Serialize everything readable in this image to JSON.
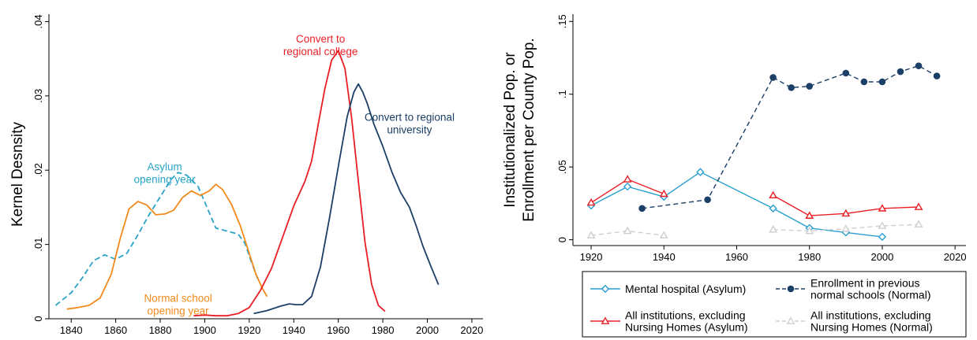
{
  "chart_data": [
    {
      "type": "line",
      "ylabel": "Kernel Desnsity",
      "xlim": [
        1830,
        2025
      ],
      "ylim": [
        0,
        0.041
      ],
      "x_ticks": [
        1840,
        1860,
        1880,
        1900,
        1920,
        1940,
        1960,
        1980,
        2000,
        2020
      ],
      "y_ticks": [
        {
          "value": 0,
          "label": "0"
        },
        {
          "value": 0.01,
          "label": ".01"
        },
        {
          "value": 0.02,
          "label": ".02"
        },
        {
          "value": 0.03,
          "label": ".03"
        },
        {
          "value": 0.04,
          "label": ".04"
        }
      ],
      "series": [
        {
          "color": "#29a3c7",
          "dash": "dashed",
          "points": [
            [
              1833,
              0.0018
            ],
            [
              1840,
              0.0035
            ],
            [
              1845,
              0.0055
            ],
            [
              1850,
              0.0078
            ],
            [
              1855,
              0.0086
            ],
            [
              1860,
              0.008
            ],
            [
              1865,
              0.0088
            ],
            [
              1870,
              0.0113
            ],
            [
              1875,
              0.014
            ],
            [
              1880,
              0.0164
            ],
            [
              1885,
              0.0188
            ],
            [
              1888,
              0.0197
            ],
            [
              1892,
              0.0193
            ],
            [
              1897,
              0.0178
            ],
            [
              1902,
              0.0143
            ],
            [
              1905,
              0.0122
            ],
            [
              1910,
              0.0118
            ],
            [
              1915,
              0.0114
            ],
            [
              1918,
              0.0102
            ],
            [
              1921,
              0.0076
            ],
            [
              1924,
              0.0052
            ]
          ]
        },
        {
          "color": "#f28a1c",
          "dash": "solid",
          "points": [
            [
              1838,
              0.0013
            ],
            [
              1843,
              0.0015
            ],
            [
              1848,
              0.0018
            ],
            [
              1853,
              0.0028
            ],
            [
              1858,
              0.006
            ],
            [
              1862,
              0.0108
            ],
            [
              1866,
              0.0148
            ],
            [
              1870,
              0.0158
            ],
            [
              1874,
              0.0153
            ],
            [
              1878,
              0.014
            ],
            [
              1882,
              0.0141
            ],
            [
              1886,
              0.0146
            ],
            [
              1890,
              0.0163
            ],
            [
              1894,
              0.0172
            ],
            [
              1898,
              0.0166
            ],
            [
              1902,
              0.0172
            ],
            [
              1905,
              0.0181
            ],
            [
              1908,
              0.0174
            ],
            [
              1912,
              0.0154
            ],
            [
              1916,
              0.0125
            ],
            [
              1920,
              0.0088
            ],
            [
              1923,
              0.006
            ],
            [
              1926,
              0.004
            ],
            [
              1928,
              0.003
            ]
          ]
        },
        {
          "color": "#e81e25",
          "dash": "solid",
          "points": [
            [
              1895,
              0.0004
            ],
            [
              1900,
              0.0005
            ],
            [
              1905,
              0.0004
            ],
            [
              1910,
              0.0004
            ],
            [
              1915,
              0.0007
            ],
            [
              1920,
              0.0015
            ],
            [
              1925,
              0.0038
            ],
            [
              1930,
              0.0068
            ],
            [
              1935,
              0.011
            ],
            [
              1940,
              0.0152
            ],
            [
              1945,
              0.0185
            ],
            [
              1948,
              0.0212
            ],
            [
              1951,
              0.0262
            ],
            [
              1954,
              0.031
            ],
            [
              1957,
              0.0348
            ],
            [
              1960,
              0.0361
            ],
            [
              1963,
              0.0337
            ],
            [
              1966,
              0.027
            ],
            [
              1969,
              0.0185
            ],
            [
              1972,
              0.0103
            ],
            [
              1975,
              0.0046
            ],
            [
              1978,
              0.0018
            ],
            [
              1981,
              0.001
            ]
          ]
        },
        {
          "color": "#1b3f66",
          "dash": "solid",
          "points": [
            [
              1922,
              0.0007
            ],
            [
              1928,
              0.0011
            ],
            [
              1934,
              0.0017
            ],
            [
              1938,
              0.002
            ],
            [
              1941,
              0.0019
            ],
            [
              1944,
              0.0019
            ],
            [
              1948,
              0.003
            ],
            [
              1952,
              0.007
            ],
            [
              1956,
              0.0135
            ],
            [
              1960,
              0.0205
            ],
            [
              1964,
              0.0272
            ],
            [
              1967,
              0.0305
            ],
            [
              1969,
              0.0316
            ],
            [
              1971,
              0.0305
            ],
            [
              1973,
              0.029
            ],
            [
              1976,
              0.0262
            ],
            [
              1980,
              0.0232
            ],
            [
              1984,
              0.0198
            ],
            [
              1988,
              0.017
            ],
            [
              1992,
              0.015
            ],
            [
              1995,
              0.0125
            ],
            [
              1998,
              0.0098
            ],
            [
              2001,
              0.0075
            ],
            [
              2005,
              0.0046
            ]
          ]
        }
      ],
      "annotations": [
        {
          "lines": [
            "Asylum",
            "opening year"
          ],
          "color": "#29a3c7",
          "x": 1882,
          "y": [
            0.0205,
            0.0188
          ]
        },
        {
          "lines": [
            "Normal school",
            "opening year"
          ],
          "color": "#f28a1c",
          "x": 1888,
          "y": [
            0.0028,
            0.0011
          ]
        },
        {
          "lines": [
            "Convert to",
            "regional college"
          ],
          "color": "#e81e25",
          "x": 1952,
          "y": [
            0.0377,
            0.036
          ]
        },
        {
          "lines": [
            "Convert to regional",
            "university"
          ],
          "color": "#1b3f66",
          "x": 1992,
          "y": [
            0.0272,
            0.0255
          ]
        }
      ]
    },
    {
      "type": "line",
      "ylabel": [
        "Institutionalized Pop.  or",
        "Enrollment per County Pop."
      ],
      "xlim": [
        1915,
        2023
      ],
      "ylim": [
        -0.004,
        0.155
      ],
      "x_ticks": [
        1920,
        1940,
        1960,
        1980,
        2000,
        2020
      ],
      "y_ticks": [
        {
          "value": 0,
          "label": "0"
        },
        {
          "value": 0.05,
          "label": ".05"
        },
        {
          "value": 0.1,
          "label": ".1"
        },
        {
          "value": 0.15,
          "label": ".15"
        }
      ],
      "series": [
        {
          "name": "Mental hospital (Asylum)",
          "color": "#2a9fcf",
          "marker": "diamond",
          "dash": "solid",
          "segments": [
            [
              [
                1920,
                0.0235
              ],
              [
                1930,
                0.0365
              ],
              [
                1940,
                0.0295
              ],
              [
                1950,
                0.0465
              ],
              [
                1970,
                0.0215
              ],
              [
                1980,
                0.008
              ],
              [
                1990,
                0.005
              ],
              [
                2000,
                0.002
              ]
            ]
          ]
        },
        {
          "name": "Enrollment in previous normal schools (Normal)",
          "color": "#1b3f66",
          "marker": "circle",
          "dash": "dashed",
          "segments": [
            [
              [
                1934,
                0.0215
              ],
              [
                1952,
                0.0275
              ],
              [
                1970,
                0.1115
              ]
            ],
            [
              [
                1970,
                0.1115
              ],
              [
                1975,
                0.1045
              ],
              [
                1980,
                0.1055
              ],
              [
                1990,
                0.1145
              ],
              [
                1995,
                0.1085
              ],
              [
                2000,
                0.1085
              ],
              [
                2005,
                0.1155
              ],
              [
                2010,
                0.1195
              ],
              [
                2015,
                0.1125
              ]
            ]
          ]
        },
        {
          "name": "All institutions, excluding Nursing Homes (Asylum)",
          "color": "#e81e25",
          "marker": "triangle",
          "dash": "solid",
          "segments": [
            [
              [
                1920,
                0.0255
              ],
              [
                1930,
                0.0415
              ],
              [
                1940,
                0.0315
              ]
            ],
            [
              [
                1970,
                0.0305
              ],
              [
                1980,
                0.0165
              ],
              [
                1990,
                0.018
              ],
              [
                2000,
                0.0215
              ],
              [
                2010,
                0.0225
              ]
            ]
          ]
        },
        {
          "name": "All institutions, excluding Nursing Homes (Normal)",
          "color": "#cfcfcf",
          "marker": "triangle",
          "dash": "dashed",
          "segments": [
            [
              [
                1920,
                0.003
              ],
              [
                1930,
                0.006
              ],
              [
                1940,
                0.003
              ]
            ],
            [
              [
                1970,
                0.007
              ],
              [
                1980,
                0.006
              ],
              [
                1990,
                0.0075
              ],
              [
                2000,
                0.0095
              ],
              [
                2010,
                0.0105
              ]
            ]
          ]
        }
      ],
      "legend": {
        "placement": "bottom",
        "items": [
          {
            "lines": [
              "Mental hospital (Asylum)"
            ],
            "color": "#2a9fcf",
            "marker": "diamond",
            "dash": "solid"
          },
          {
            "lines": [
              "Enrollment in previous",
              "normal schools (Normal)"
            ],
            "color": "#1b3f66",
            "marker": "circle",
            "dash": "dashed"
          },
          {
            "lines": [
              "All institutions, excluding",
              "Nursing Homes (Asylum)"
            ],
            "color": "#e81e25",
            "marker": "triangle",
            "dash": "solid"
          },
          {
            "lines": [
              "All institutions, excluding",
              "Nursing Homes (Normal)"
            ],
            "color": "#cfcfcf",
            "marker": "triangle",
            "dash": "dashed"
          }
        ]
      }
    }
  ]
}
